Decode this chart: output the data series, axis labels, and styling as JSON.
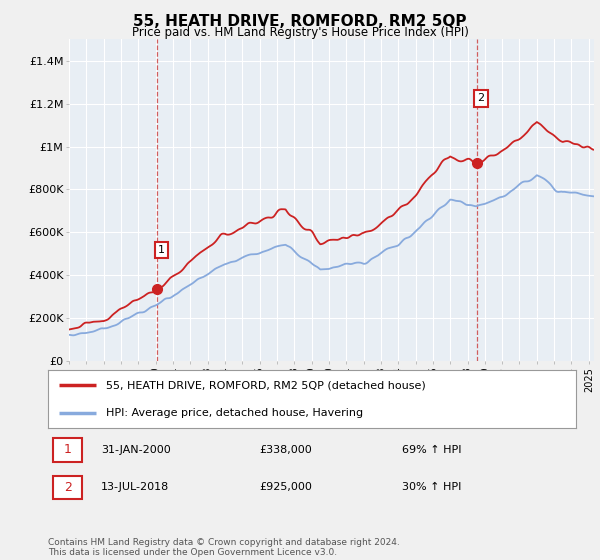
{
  "title": "55, HEATH DRIVE, ROMFORD, RM2 5QP",
  "subtitle": "Price paid vs. HM Land Registry's House Price Index (HPI)",
  "legend_label_red": "55, HEATH DRIVE, ROMFORD, RM2 5QP (detached house)",
  "legend_label_blue": "HPI: Average price, detached house, Havering",
  "sale1_date": "31-JAN-2000",
  "sale1_price": "£338,000",
  "sale1_hpi": "69% ↑ HPI",
  "sale2_date": "13-JUL-2018",
  "sale2_price": "£925,000",
  "sale2_hpi": "30% ↑ HPI",
  "footer": "Contains HM Land Registry data © Crown copyright and database right 2024.\nThis data is licensed under the Open Government Licence v3.0.",
  "ylim": [
    0,
    1500000
  ],
  "yticks": [
    0,
    200000,
    400000,
    600000,
    800000,
    1000000,
    1200000,
    1400000
  ],
  "ytick_labels": [
    "£0",
    "£200K",
    "£400K",
    "£600K",
    "£800K",
    "£1M",
    "£1.2M",
    "£1.4M"
  ],
  "red_color": "#cc2222",
  "blue_color": "#88aadd",
  "plot_bg": "#e8eef4",
  "background_color": "#f0f0f0",
  "sale1_x": 2000.083,
  "sale1_y": 338000,
  "sale2_x": 2018.536,
  "sale2_y": 925000,
  "xmin": 1995,
  "xmax": 2025.3
}
